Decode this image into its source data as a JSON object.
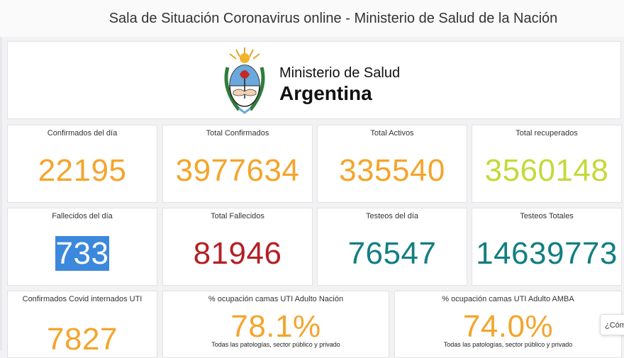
{
  "page": {
    "title": "Sala de Situación Coronavirus online - Ministerio de Salud de la Nación"
  },
  "banner": {
    "line1": "Ministerio de Salud",
    "line2": "Argentina",
    "logo_icon": "argentina-coat-of-arms-icon"
  },
  "colors": {
    "orange": "#f4a52c",
    "lime": "#c5d93a",
    "red": "#b42025",
    "teal": "#137e82",
    "highlight": "#3b88dc"
  },
  "stats_row1": [
    {
      "label": "Confirmados del día",
      "value": "22195",
      "color": "#f4a52c"
    },
    {
      "label": "Total Confirmados",
      "value": "3977634",
      "color": "#f4a52c"
    },
    {
      "label": "Total Activos",
      "value": "335540",
      "color": "#f4a52c"
    },
    {
      "label": "Total recuperados",
      "value": "3560148",
      "color": "#c5d93a"
    }
  ],
  "stats_row2": [
    {
      "label": "Fallecidos del día",
      "value": "733",
      "color": "#ffffff"
    },
    {
      "label": "Total Fallecidos",
      "value": "81946",
      "color": "#b42025"
    },
    {
      "label": "Testeos del día",
      "value": "76547",
      "color": "#137e82"
    },
    {
      "label": "Testeos Totales",
      "value": "14639773",
      "color": "#137e82"
    }
  ],
  "stats_row3": [
    {
      "label": "Confirmados Covid internados UTI",
      "value": "7827",
      "color": "#f4a52c"
    },
    {
      "label": "% ocupación camas UTI Adulto Nación",
      "value": "78.1%",
      "color": "#f4a52c",
      "note": "Todas las patologías, sector público y privado"
    },
    {
      "label": "% ocupación camas UTI Adulto AMBA",
      "value": "74.0%",
      "color": "#f4a52c",
      "note": "Todas las patologías, sector público y privado"
    }
  ],
  "help": {
    "label": "¿Cómo"
  }
}
